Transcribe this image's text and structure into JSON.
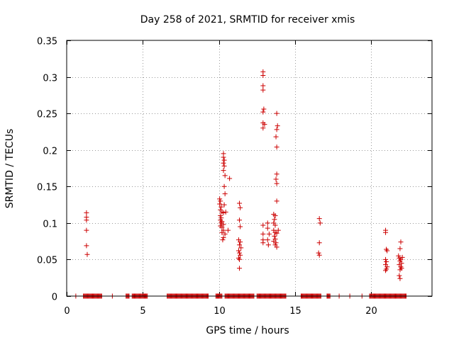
{
  "chart_data": {
    "type": "scatter",
    "title": "Day 258 of 2021, SRMTID for receiver xmis",
    "xlabel": "GPS time / hours",
    "ylabel": "SRMTID / TECUs",
    "xlim": [
      0,
      24
    ],
    "ylim": [
      0,
      0.35
    ],
    "grid": true,
    "marker": "+",
    "colors": {
      "marker": "#cc0000",
      "grid": "#999999",
      "axis": "#000000"
    },
    "xticks": [
      {
        "value": 0,
        "label": "0"
      },
      {
        "value": 5,
        "label": "5"
      },
      {
        "value": 10,
        "label": "10"
      },
      {
        "value": 15,
        "label": "15"
      },
      {
        "value": 20,
        "label": "20"
      }
    ],
    "yticks": [
      {
        "value": 0,
        "label": "0"
      },
      {
        "value": 0.05,
        "label": "0.05"
      },
      {
        "value": 0.1,
        "label": "0.1"
      },
      {
        "value": 0.15,
        "label": "0.15"
      },
      {
        "value": 0.2,
        "label": "0.2"
      },
      {
        "value": 0.25,
        "label": "0.25"
      },
      {
        "value": 0.3,
        "label": "0.3"
      },
      {
        "value": 0.35,
        "label": "0.35"
      }
    ],
    "series": [
      {
        "name": "SRMTID",
        "points": [
          [
            1.3,
            0.114
          ],
          [
            1.3,
            0.108
          ],
          [
            1.3,
            0.104
          ],
          [
            1.3,
            0.09
          ],
          [
            1.3,
            0.069
          ],
          [
            1.35,
            0.057
          ],
          [
            10.05,
            0.133
          ],
          [
            10.1,
            0.13
          ],
          [
            10.05,
            0.126
          ],
          [
            10.15,
            0.122
          ],
          [
            10.1,
            0.118
          ],
          [
            10.2,
            0.115
          ],
          [
            10.3,
            0.114
          ],
          [
            10.1,
            0.11
          ],
          [
            10.15,
            0.107
          ],
          [
            10.1,
            0.104
          ],
          [
            10.2,
            0.102
          ],
          [
            10.15,
            0.1
          ],
          [
            10.3,
            0.098
          ],
          [
            10.1,
            0.096
          ],
          [
            10.2,
            0.094
          ],
          [
            10.3,
            0.09
          ],
          [
            10.2,
            0.087
          ],
          [
            10.4,
            0.085
          ],
          [
            10.3,
            0.08
          ],
          [
            10.25,
            0.077
          ],
          [
            10.6,
            0.09
          ],
          [
            10.3,
            0.195
          ],
          [
            10.3,
            0.19
          ],
          [
            10.35,
            0.186
          ],
          [
            10.3,
            0.182
          ],
          [
            10.35,
            0.178
          ],
          [
            10.3,
            0.172
          ],
          [
            10.4,
            0.165
          ],
          [
            10.35,
            0.15
          ],
          [
            10.4,
            0.14
          ],
          [
            10.35,
            0.125
          ],
          [
            10.45,
            0.115
          ],
          [
            10.7,
            0.161
          ],
          [
            11.35,
            0.127
          ],
          [
            11.4,
            0.121
          ],
          [
            11.35,
            0.104
          ],
          [
            11.4,
            0.095
          ],
          [
            11.3,
            0.077
          ],
          [
            11.4,
            0.074
          ],
          [
            11.35,
            0.07
          ],
          [
            11.45,
            0.066
          ],
          [
            11.3,
            0.062
          ],
          [
            11.35,
            0.059
          ],
          [
            11.4,
            0.056
          ],
          [
            11.3,
            0.052
          ],
          [
            11.35,
            0.05
          ],
          [
            11.35,
            0.038
          ],
          [
            12.9,
            0.307
          ],
          [
            12.9,
            0.302
          ],
          [
            12.9,
            0.288
          ],
          [
            12.9,
            0.282
          ],
          [
            12.95,
            0.256
          ],
          [
            12.9,
            0.252
          ],
          [
            12.9,
            0.237
          ],
          [
            13.0,
            0.235
          ],
          [
            12.9,
            0.23
          ],
          [
            12.9,
            0.097
          ],
          [
            12.9,
            0.085
          ],
          [
            12.9,
            0.077
          ],
          [
            12.9,
            0.073
          ],
          [
            13.2,
            0.1
          ],
          [
            13.2,
            0.093
          ],
          [
            13.3,
            0.085
          ],
          [
            13.2,
            0.077
          ],
          [
            13.25,
            0.07
          ],
          [
            13.8,
            0.25
          ],
          [
            13.85,
            0.233
          ],
          [
            13.8,
            0.228
          ],
          [
            13.75,
            0.218
          ],
          [
            13.8,
            0.204
          ],
          [
            13.8,
            0.167
          ],
          [
            13.75,
            0.16
          ],
          [
            13.8,
            0.154
          ],
          [
            13.8,
            0.13
          ],
          [
            13.6,
            0.112
          ],
          [
            13.7,
            0.11
          ],
          [
            13.65,
            0.105
          ],
          [
            13.6,
            0.1
          ],
          [
            13.7,
            0.097
          ],
          [
            13.6,
            0.09
          ],
          [
            13.7,
            0.087
          ],
          [
            13.65,
            0.082
          ],
          [
            13.8,
            0.086
          ],
          [
            13.7,
            0.078
          ],
          [
            13.6,
            0.075
          ],
          [
            13.75,
            0.073
          ],
          [
            13.7,
            0.07
          ],
          [
            13.8,
            0.067
          ],
          [
            13.9,
            0.09
          ],
          [
            16.6,
            0.106
          ],
          [
            16.65,
            0.1
          ],
          [
            16.6,
            0.073
          ],
          [
            16.55,
            0.059
          ],
          [
            16.6,
            0.056
          ],
          [
            20.95,
            0.09
          ],
          [
            20.95,
            0.087
          ],
          [
            21.0,
            0.064
          ],
          [
            21.05,
            0.062
          ],
          [
            20.95,
            0.05
          ],
          [
            21.0,
            0.047
          ],
          [
            20.95,
            0.043
          ],
          [
            21.05,
            0.04
          ],
          [
            21.0,
            0.037
          ],
          [
            20.95,
            0.035
          ],
          [
            21.95,
            0.074
          ],
          [
            21.9,
            0.065
          ],
          [
            21.8,
            0.055
          ],
          [
            21.85,
            0.052
          ],
          [
            21.95,
            0.05
          ],
          [
            22.05,
            0.053
          ],
          [
            21.9,
            0.048
          ],
          [
            22.0,
            0.045
          ],
          [
            21.85,
            0.043
          ],
          [
            21.95,
            0.04
          ],
          [
            22.0,
            0.038
          ],
          [
            21.9,
            0.036
          ],
          [
            21.85,
            0.028
          ],
          [
            21.9,
            0.024
          ]
        ]
      }
    ],
    "zero_segments": [
      [
        0.6,
        0.6
      ],
      [
        1.1,
        2.3
      ],
      [
        3.0,
        3.0
      ],
      [
        3.9,
        4.1
      ],
      [
        4.3,
        5.3
      ],
      [
        6.6,
        9.3
      ],
      [
        9.8,
        10.2
      ],
      [
        10.4,
        12.3
      ],
      [
        12.5,
        14.4
      ],
      [
        15.4,
        16.7
      ],
      [
        17.1,
        17.3
      ],
      [
        17.9,
        17.9
      ],
      [
        18.6,
        18.6
      ],
      [
        19.4,
        19.4
      ],
      [
        19.9,
        22.3
      ]
    ]
  }
}
